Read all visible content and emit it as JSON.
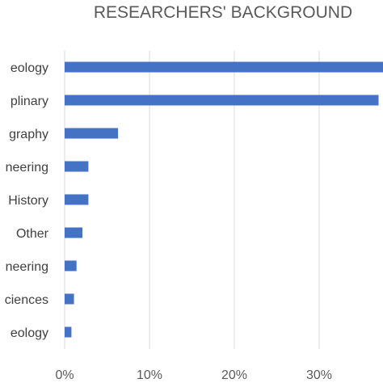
{
  "chart_data": {
    "type": "bar",
    "orientation": "horizontal",
    "title": "RESEARCHERS' BACKGROUND",
    "categories": [
      "Archaeology",
      "Interdisciplinary",
      "Geography",
      "Engineering",
      "History",
      "Other",
      "Engineering",
      "Sciences",
      "Geology"
    ],
    "category_labels_visible": [
      "eology",
      "plinary",
      "graphy",
      "neering",
      "History",
      "Other",
      "neering",
      "ciences",
      "eology"
    ],
    "values": [
      40,
      37,
      6.3,
      2.8,
      2.8,
      2.1,
      1.4,
      1.1,
      0.8
    ],
    "xlim": [
      0,
      40
    ],
    "x_ticks": [
      0,
      10,
      20,
      30
    ],
    "x_tick_labels": [
      "0%",
      "10%",
      "20%",
      "30%"
    ],
    "grid": true,
    "bar_color": "#4472c4",
    "xlabel": "",
    "ylabel": ""
  }
}
